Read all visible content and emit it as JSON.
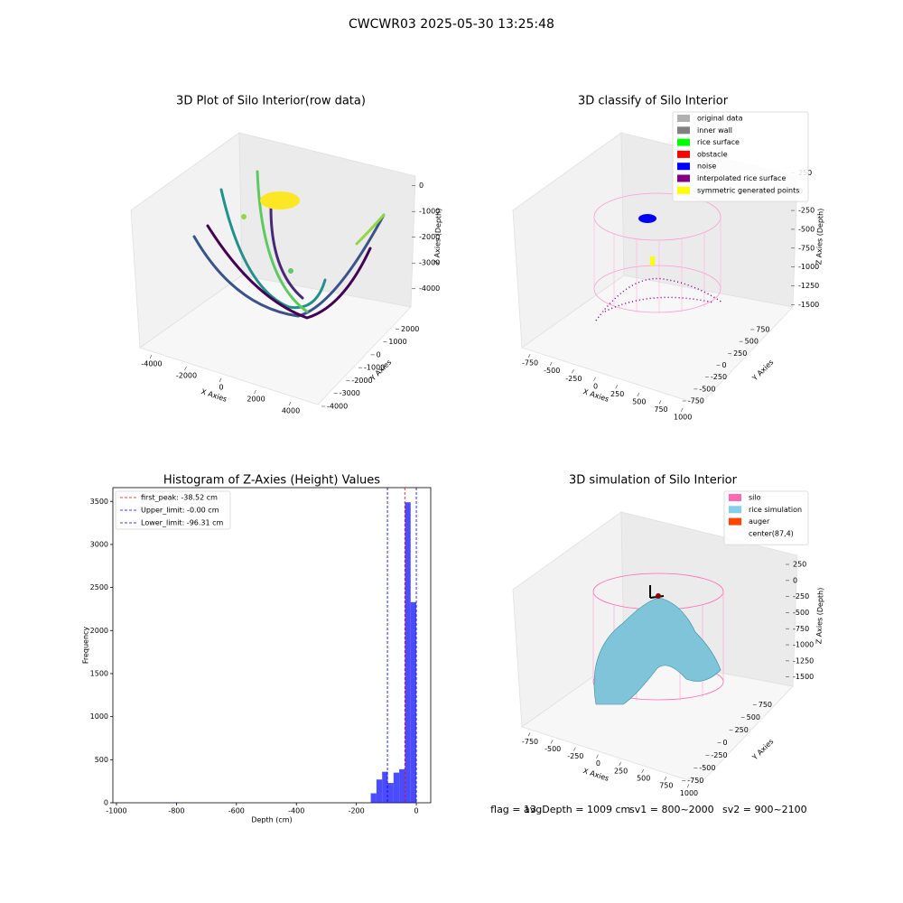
{
  "suptitle": "CWCWR03 2025-05-30 13:25:48",
  "chart_data": [
    {
      "type": "scatter3d",
      "title": "3D Plot of Silo Interior(row data)",
      "xlabel": "X Axies",
      "ylabel": "Y Axies",
      "zlabel": "Z Axies (Depth)",
      "xlim": [
        -4700,
        4700
      ],
      "ylim": [
        -4700,
        2700
      ],
      "zlim": [
        -4500,
        200
      ],
      "xticks": [
        -4000,
        -2000,
        0,
        2000,
        4000
      ],
      "yticks": [
        -4000,
        -3000,
        -2000,
        -1000,
        0,
        1000,
        2000
      ],
      "zticks": [
        0,
        -1000,
        -2000,
        -3000,
        -4000
      ]
    },
    {
      "type": "scatter3d",
      "title": "3D classify of Silo Interior",
      "xlabel": "X Axies",
      "ylabel": "Y Axies",
      "zlabel": "Z Axies (Depth)",
      "xlim": [
        -850,
        1050
      ],
      "ylim": [
        -850,
        850
      ],
      "zlim": [
        -1600,
        300
      ],
      "xticks": [
        -750,
        -500,
        -250,
        0,
        250,
        500,
        750,
        1000
      ],
      "yticks": [
        -750,
        -500,
        -250,
        0,
        250,
        500,
        750
      ],
      "zticks": [
        250,
        0,
        -250,
        -500,
        -750,
        -1000,
        -1250,
        -1500
      ],
      "legend": [
        {
          "name": "original data",
          "color": "#b0b0b0"
        },
        {
          "name": "inner wall",
          "color": "#808080"
        },
        {
          "name": "rice surface",
          "color": "#00ff00"
        },
        {
          "name": "obstacle",
          "color": "#ff0000"
        },
        {
          "name": "noise",
          "color": "#0000ff"
        },
        {
          "name": "interpolated rice surface",
          "color": "#800080"
        },
        {
          "name": "symmetric generated points",
          "color": "#ffff00"
        }
      ]
    },
    {
      "type": "histogram",
      "title": "Histogram of Z-Axies (Height) Values",
      "xlabel": "Depth (cm)",
      "ylabel": "Frequency",
      "color": "#0000ff",
      "bins": [
        -810,
        -790,
        -152,
        -133,
        -114,
        -95,
        -76,
        -57,
        -38,
        -19,
        0
      ],
      "values": [
        5,
        0,
        110,
        270,
        360,
        230,
        350,
        390,
        3490,
        2330
      ],
      "xlim": [
        -1012,
        48
      ],
      "ylim": [
        0,
        3660
      ],
      "xticks": [
        -1000,
        -800,
        -600,
        -400,
        -200,
        0
      ],
      "yticks": [
        0,
        500,
        1000,
        1500,
        2000,
        2500,
        3000,
        3500
      ],
      "vlines": [
        {
          "label": "first_peak: -38.52 cm",
          "value": -38.52,
          "color": "#ff0000"
        },
        {
          "label": "Upper_limit: -0.00 cm",
          "value": -0.0,
          "color": "#0000ff"
        },
        {
          "label": "Lower_limit: -96.31 cm",
          "value": -96.31,
          "color": "#0000aa"
        }
      ]
    },
    {
      "type": "surface3d",
      "title": "3D simulation of Silo Interior",
      "xlabel": "X Axies",
      "ylabel": "Y Axies",
      "zlabel": "Z Axies (Depth)",
      "xlim": [
        -850,
        1050
      ],
      "ylim": [
        -850,
        850
      ],
      "zlim": [
        -1600,
        350
      ],
      "xticks": [
        -750,
        -500,
        -250,
        0,
        250,
        500,
        750,
        1000
      ],
      "yticks": [
        -750,
        -500,
        -250,
        0,
        250,
        500,
        750
      ],
      "zticks": [
        250,
        0,
        -250,
        -500,
        -750,
        -1000,
        -1250,
        -1500
      ],
      "legend": [
        {
          "name": "silo",
          "color": "#ff69b4"
        },
        {
          "name": "rice simulation",
          "color": "#87ceeb"
        },
        {
          "name": "auger",
          "color": "#ff4500"
        },
        {
          "name": "center(87,4)",
          "color": "#ffffff"
        }
      ]
    }
  ],
  "footer": [
    "flag = 13",
    "avgDepth = 1009 cm",
    "sv1 = 800~2000",
    "sv2 = 900~2100"
  ]
}
